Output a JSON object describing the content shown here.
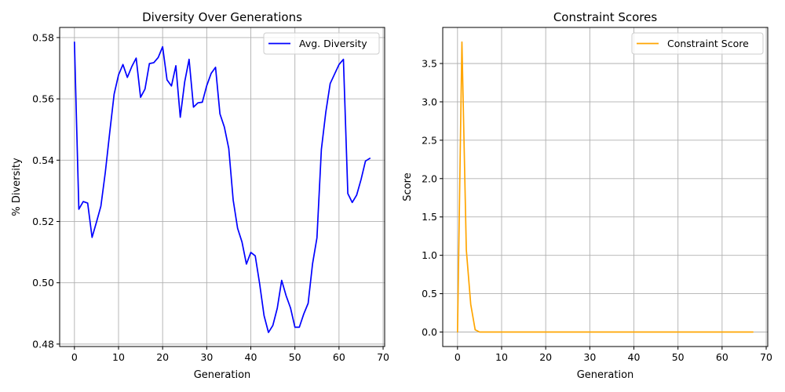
{
  "chart_data": [
    {
      "type": "line",
      "title": "Diversity Over Generations",
      "xlabel": "Generation",
      "ylabel": "% Diversity",
      "xlim": [
        -3.35,
        70.35
      ],
      "ylim": [
        0.4792,
        0.5833
      ],
      "xticks": [
        0,
        10,
        20,
        30,
        40,
        50,
        60,
        70
      ],
      "xtick_labels": [
        "0",
        "10",
        "20",
        "30",
        "40",
        "50",
        "60",
        "70"
      ],
      "yticks": [
        0.48,
        0.5,
        0.52,
        0.54,
        0.56,
        0.58
      ],
      "ytick_labels": [
        "0.48",
        "0.50",
        "0.52",
        "0.54",
        "0.56",
        "0.58"
      ],
      "grid": true,
      "legend_position": "top-right",
      "series": [
        {
          "name": "Avg. Diversity",
          "color": "#0000ff",
          "x": [
            0,
            1,
            2,
            3,
            4,
            5,
            6,
            7,
            8,
            9,
            10,
            11,
            12,
            13,
            14,
            15,
            16,
            17,
            18,
            19,
            20,
            21,
            22,
            23,
            24,
            25,
            26,
            27,
            28,
            29,
            30,
            31,
            32,
            33,
            34,
            35,
            36,
            37,
            38,
            39,
            40,
            41,
            42,
            43,
            44,
            45,
            46,
            47,
            48,
            49,
            50,
            51,
            52,
            53,
            54,
            55,
            56,
            57,
            58,
            59,
            60,
            61,
            62,
            63,
            64,
            65,
            66,
            67
          ],
          "y": [
            0.5785,
            0.524,
            0.5265,
            0.526,
            0.5148,
            0.5198,
            0.525,
            0.536,
            0.549,
            0.5615,
            0.5678,
            0.5712,
            0.567,
            0.5705,
            0.5733,
            0.5605,
            0.5632,
            0.5715,
            0.5718,
            0.5735,
            0.577,
            0.5662,
            0.5642,
            0.5708,
            0.554,
            0.5655,
            0.5729,
            0.5573,
            0.5587,
            0.5589,
            0.5643,
            0.5683,
            0.5703,
            0.5551,
            0.5508,
            0.5438,
            0.527,
            0.5178,
            0.5133,
            0.5061,
            0.5099,
            0.5088,
            0.4997,
            0.4893,
            0.4838,
            0.4861,
            0.4917,
            0.5008,
            0.4958,
            0.4918,
            0.4855,
            0.4855,
            0.4898,
            0.4933,
            0.5062,
            0.5147,
            0.5435,
            0.5556,
            0.565,
            0.5681,
            0.5712,
            0.5729,
            0.5291,
            0.5262,
            0.5286,
            0.5337,
            0.5397,
            0.5406
          ]
        }
      ]
    },
    {
      "type": "line",
      "title": "Constraint Scores",
      "xlabel": "Generation",
      "ylabel": "Score",
      "xlim": [
        -3.35,
        70.35
      ],
      "ylim": [
        -0.189,
        3.97
      ],
      "xticks": [
        0,
        10,
        20,
        30,
        40,
        50,
        60,
        70
      ],
      "xtick_labels": [
        "0",
        "10",
        "20",
        "30",
        "40",
        "50",
        "60",
        "70"
      ],
      "yticks": [
        0.0,
        0.5,
        1.0,
        1.5,
        2.0,
        2.5,
        3.0,
        3.5
      ],
      "ytick_labels": [
        "0.0",
        "0.5",
        "1.0",
        "1.5",
        "2.0",
        "2.5",
        "3.0",
        "3.5"
      ],
      "grid": true,
      "legend_position": "top-right",
      "series": [
        {
          "name": "Constraint Score",
          "color": "#ffa500",
          "x": [
            0,
            1,
            2,
            3,
            4,
            5,
            6,
            7,
            8,
            9,
            10,
            11,
            12,
            13,
            14,
            15,
            16,
            17,
            18,
            19,
            20,
            21,
            22,
            23,
            24,
            25,
            26,
            27,
            28,
            29,
            30,
            31,
            32,
            33,
            34,
            35,
            36,
            37,
            38,
            39,
            40,
            41,
            42,
            43,
            44,
            45,
            46,
            47,
            48,
            49,
            50,
            51,
            52,
            53,
            54,
            55,
            56,
            57,
            58,
            59,
            60,
            61,
            62,
            63,
            64,
            65,
            66,
            67
          ],
          "y": [
            0.0,
            3.78,
            1.07,
            0.36,
            0.03,
            0.0,
            0.0,
            0.0,
            0.0,
            0.0,
            0.0,
            0.0,
            0.0,
            0.0,
            0.0,
            0.0,
            0.0,
            0.0,
            0.0,
            0.0,
            0.0,
            0.0,
            0.0,
            0.0,
            0.0,
            0.0,
            0.0,
            0.0,
            0.0,
            0.0,
            0.0,
            0.0,
            0.0,
            0.0,
            0.0,
            0.0,
            0.0,
            0.0,
            0.0,
            0.0,
            0.0,
            0.0,
            0.0,
            0.0,
            0.0,
            0.0,
            0.0,
            0.0,
            0.0,
            0.0,
            0.0,
            0.0,
            0.0,
            0.0,
            0.0,
            0.0,
            0.0,
            0.0,
            0.0,
            0.0,
            0.0,
            0.0,
            0.0,
            0.0,
            0.0,
            0.0,
            0.0,
            0.0
          ]
        }
      ]
    }
  ]
}
